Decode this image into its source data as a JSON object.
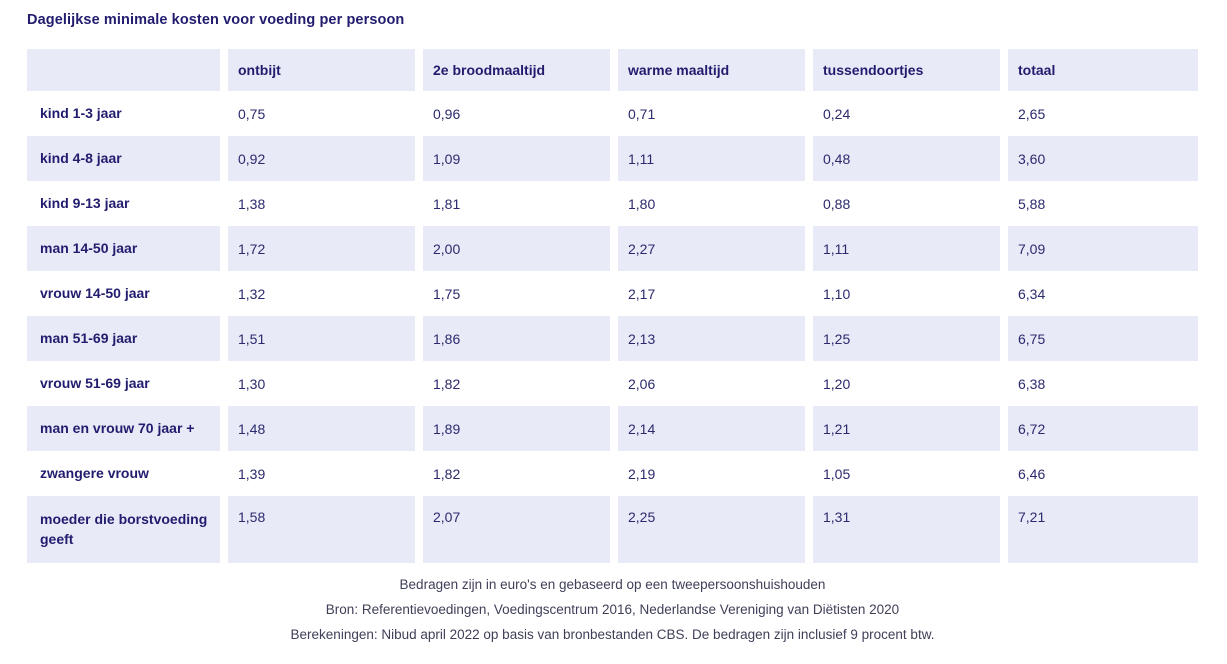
{
  "page": {
    "title": "Dagelijkse minimale kosten voor voeding per persoon"
  },
  "table": {
    "header": [
      "",
      "ontbijt",
      "2e broodmaaltijd",
      "warme maaltijd",
      "tussendoortjes",
      "totaal"
    ],
    "rows": [
      {
        "label": "kind 1-3 jaar",
        "values": [
          "0,75",
          "0,96",
          "0,71",
          "0,24",
          "2,65"
        ]
      },
      {
        "label": "kind 4-8 jaar",
        "values": [
          "0,92",
          "1,09",
          "1,11",
          "0,48",
          "3,60"
        ]
      },
      {
        "label": "kind 9-13 jaar",
        "values": [
          "1,38",
          "1,81",
          "1,80",
          "0,88",
          "5,88"
        ]
      },
      {
        "label": "man 14-50 jaar",
        "values": [
          "1,72",
          "2,00",
          "2,27",
          "1,11",
          "7,09"
        ]
      },
      {
        "label": "vrouw 14-50 jaar",
        "values": [
          "1,32",
          "1,75",
          "2,17",
          "1,10",
          "6,34"
        ]
      },
      {
        "label": "man 51-69 jaar",
        "values": [
          "1,51",
          "1,86",
          "2,13",
          "1,25",
          "6,75"
        ]
      },
      {
        "label": "vrouw 51-69 jaar",
        "values": [
          "1,30",
          "1,82",
          "2,06",
          "1,20",
          "6,38"
        ]
      },
      {
        "label": "man en vrouw 70 jaar +",
        "values": [
          "1,48",
          "1,89",
          "2,14",
          "1,21",
          "6,72"
        ]
      },
      {
        "label": "zwangere vrouw",
        "values": [
          "1,39",
          "1,82",
          "2,19",
          "1,05",
          "6,46"
        ]
      },
      {
        "label": "moeder die borstvoeding geeft",
        "values": [
          "1,58",
          "2,07",
          "2,25",
          "1,31",
          "7,21"
        ]
      }
    ]
  },
  "footnotes": [
    "Bedragen zijn in euro's en gebaseerd op een tweepersoonshuishouden",
    "Bron: Referentievoedingen, Voedingscentrum 2016, Nederlandse Vereniging van Diëtisten 2020",
    "Berekeningen: Nibud april 2022 op basis van bronbestanden CBS. De bedragen zijn inclusief 9 procent btw."
  ],
  "colors": {
    "accent_navy": "#211c6e",
    "row_highlight": "#e8eaf7",
    "footnote_text": "#3f3f58",
    "background": "#ffffff"
  },
  "chart_data": {
    "type": "table",
    "title": "Dagelijkse minimale kosten voor voeding per persoon",
    "columns": [
      "ontbijt",
      "2e broodmaaltijd",
      "warme maaltijd",
      "tussendoortjes",
      "totaal"
    ],
    "row_labels": [
      "kind 1-3 jaar",
      "kind 4-8 jaar",
      "kind 9-13 jaar",
      "man 14-50 jaar",
      "vrouw 14-50 jaar",
      "man 51-69 jaar",
      "vrouw 51-69 jaar",
      "man en vrouw 70 jaar +",
      "zwangere vrouw",
      "moeder die borstvoeding geeft"
    ],
    "values_eur": [
      [
        0.75,
        0.96,
        0.71,
        0.24,
        2.65
      ],
      [
        0.92,
        1.09,
        1.11,
        0.48,
        3.6
      ],
      [
        1.38,
        1.81,
        1.8,
        0.88,
        5.88
      ],
      [
        1.72,
        2.0,
        2.27,
        1.11,
        7.09
      ],
      [
        1.32,
        1.75,
        2.17,
        1.1,
        6.34
      ],
      [
        1.51,
        1.86,
        2.13,
        1.25,
        6.75
      ],
      [
        1.3,
        1.82,
        2.06,
        1.2,
        6.38
      ],
      [
        1.48,
        1.89,
        2.14,
        1.21,
        6.72
      ],
      [
        1.39,
        1.82,
        2.19,
        1.05,
        6.46
      ],
      [
        1.58,
        2.07,
        2.25,
        1.31,
        7.21
      ]
    ],
    "notes": [
      "Bedragen zijn in euro's en gebaseerd op een tweepersoonshuishouden",
      "Bron: Referentievoedingen, Voedingscentrum 2016, Nederlandse Vereniging van Diëtisten 2020",
      "Berekeningen: Nibud april 2022 op basis van bronbestanden CBS. De bedragen zijn inclusief 9 procent btw."
    ],
    "layout": {
      "striped_rows": true,
      "stripe_color": "#e8eaf7",
      "grid": false,
      "legend": "none"
    }
  }
}
